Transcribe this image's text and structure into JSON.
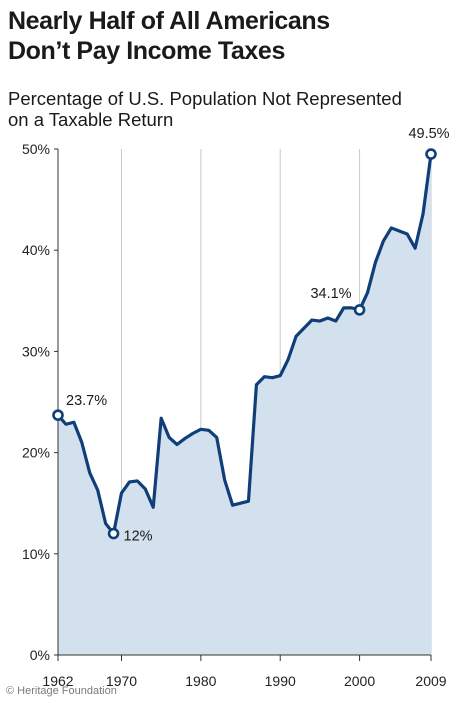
{
  "chart_data": {
    "type": "area",
    "title_lines": [
      "Nearly Half of All Americans",
      "Don’t Pay Income Taxes"
    ],
    "subtitle_lines": [
      "Percentage of U.S. Population Not Represented",
      "on a Taxable Return"
    ],
    "xlabel": "",
    "ylabel": "",
    "xlim": [
      1962,
      2009
    ],
    "ylim": [
      0,
      50
    ],
    "x_ticks": [
      1962,
      1970,
      1980,
      1990,
      2000,
      2009
    ],
    "x_tick_labels": [
      "1962",
      "1970",
      "1980",
      "1990",
      "2000",
      "2009"
    ],
    "y_ticks": [
      0,
      10,
      20,
      30,
      40,
      50
    ],
    "y_tick_labels": [
      "0%",
      "10%",
      "20%",
      "30%",
      "40%",
      "50%"
    ],
    "grid": "vertical lines at x ticks",
    "series": [
      {
        "x": [
          1962,
          1963,
          1964,
          1965,
          1966,
          1967,
          1968,
          1969,
          1970,
          1971,
          1972,
          1973,
          1974,
          1975,
          1976,
          1977,
          1978,
          1979,
          1980,
          1981,
          1982,
          1983,
          1984,
          1985,
          1986,
          1987,
          1988,
          1989,
          1990,
          1991,
          1992,
          1993,
          1994,
          1995,
          1996,
          1997,
          1998,
          1999,
          2000,
          2001,
          2002,
          2003,
          2004,
          2005,
          2006,
          2007,
          2008,
          2009
        ],
        "y": [
          23.7,
          22.8,
          23.0,
          21.0,
          18.0,
          16.3,
          13.0,
          12.0,
          16.0,
          17.1,
          17.2,
          16.4,
          14.6,
          23.4,
          21.5,
          20.8,
          21.4,
          21.9,
          22.3,
          22.2,
          21.5,
          17.3,
          14.8,
          15.0,
          15.2,
          26.7,
          27.5,
          27.4,
          27.6,
          29.2,
          31.5,
          32.3,
          33.1,
          33.0,
          33.3,
          33.0,
          34.3,
          34.3,
          34.1,
          35.8,
          38.8,
          40.9,
          42.2,
          41.9,
          41.6,
          40.2,
          43.6,
          49.5
        ]
      }
    ],
    "annotations": [
      {
        "x": 1962,
        "y": 23.7,
        "label": "23.7%"
      },
      {
        "x": 1969,
        "y": 12.0,
        "label": "12%"
      },
      {
        "x": 2000,
        "y": 34.1,
        "label": "34.1%"
      },
      {
        "x": 2009,
        "y": 49.5,
        "label": "49.5%"
      }
    ],
    "colors": {
      "line": "#0f3e78",
      "fill": "#d3e0ee",
      "grid": "#c9c9c9",
      "axis": "#333333"
    }
  },
  "footer": {
    "source": "© Heritage Foundation"
  }
}
